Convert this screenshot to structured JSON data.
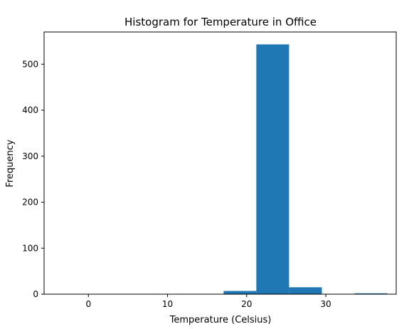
{
  "chart_data": {
    "type": "bar",
    "title": "Histogram for Temperature in Office",
    "xlabel": "Temperature (Celsius)",
    "ylabel": "Frequency",
    "xlim": [
      -5.6,
      38.9
    ],
    "ylim": [
      0,
      570
    ],
    "xticks": [
      0,
      10,
      20,
      30
    ],
    "yticks": [
      0,
      100,
      200,
      300,
      400,
      500
    ],
    "grid": false,
    "legend": "none",
    "bar_color": "#1f77b4",
    "bins": [
      {
        "x0": -3.6,
        "x1": 0.54,
        "count": 0
      },
      {
        "x0": 0.54,
        "x1": 4.67,
        "count": 0
      },
      {
        "x0": 4.67,
        "x1": 8.81,
        "count": 0
      },
      {
        "x0": 8.81,
        "x1": 12.95,
        "count": 0
      },
      {
        "x0": 12.95,
        "x1": 17.09,
        "count": 0
      },
      {
        "x0": 17.09,
        "x1": 21.22,
        "count": 7
      },
      {
        "x0": 21.22,
        "x1": 25.36,
        "count": 543
      },
      {
        "x0": 25.36,
        "x1": 29.5,
        "count": 15
      },
      {
        "x0": 29.5,
        "x1": 33.63,
        "count": 0
      },
      {
        "x0": 33.63,
        "x1": 37.77,
        "count": 1
      }
    ]
  }
}
